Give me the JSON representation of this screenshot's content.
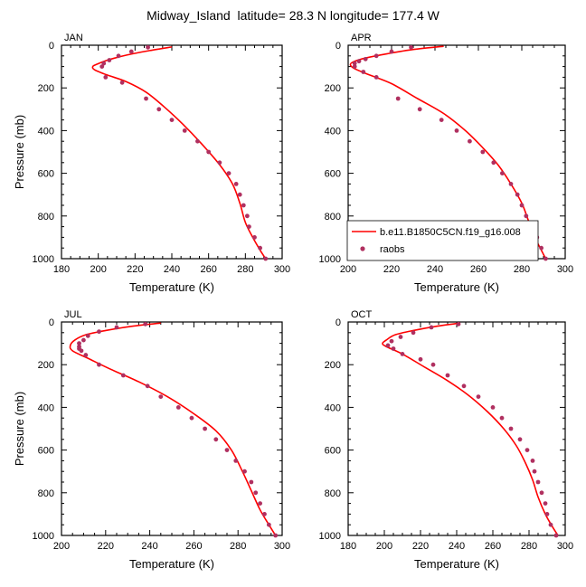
{
  "title": "Midway_Island  latitude= 28.3 N longitude= 177.4 W",
  "colors": {
    "model_line": "#ff0000",
    "obs_marker": "#b03060",
    "axis": "#000000"
  },
  "legend": {
    "items": [
      {
        "label": "b.e11.B1850C5CN.f19_g16.008",
        "kind": "line"
      },
      {
        "label": "raobs",
        "kind": "marker"
      }
    ]
  },
  "chart_data": [
    {
      "type": "line",
      "panel": "JAN",
      "xlabel": "Temperature (K)",
      "ylabel": "Pressure (mb)",
      "xlim": [
        180,
        300
      ],
      "ylim": [
        1000,
        0
      ],
      "xticks": [
        180,
        200,
        220,
        240,
        260,
        280,
        300
      ],
      "yticks": [
        0,
        200,
        400,
        600,
        800,
        1000
      ],
      "model": {
        "name": "b.e11.B1850C5CN.f19_g16.008",
        "points": [
          [
            240,
            8
          ],
          [
            228,
            25
          ],
          [
            216,
            45
          ],
          [
            205,
            70
          ],
          [
            199,
            90
          ],
          [
            197,
            100
          ],
          [
            198,
            115
          ],
          [
            205,
            140
          ],
          [
            215,
            170
          ],
          [
            226,
            220
          ],
          [
            236,
            290
          ],
          [
            246,
            370
          ],
          [
            256,
            460
          ],
          [
            266,
            560
          ],
          [
            273,
            650
          ],
          [
            277,
            740
          ],
          [
            280,
            830
          ],
          [
            284,
            900
          ],
          [
            288,
            960
          ],
          [
            291,
            1000
          ]
        ]
      },
      "raobs": {
        "name": "raobs",
        "points": [
          [
            227,
            10
          ],
          [
            218,
            30
          ],
          [
            211,
            50
          ],
          [
            206,
            70
          ],
          [
            203,
            85
          ],
          [
            202,
            100
          ],
          [
            204,
            150
          ],
          [
            213,
            175
          ],
          [
            226,
            250
          ],
          [
            233,
            300
          ],
          [
            240,
            350
          ],
          [
            247,
            400
          ],
          [
            254,
            450
          ],
          [
            260,
            500
          ],
          [
            266,
            550
          ],
          [
            271,
            600
          ],
          [
            275,
            650
          ],
          [
            277,
            700
          ],
          [
            279,
            750
          ],
          [
            281,
            800
          ],
          [
            282,
            850
          ],
          [
            285,
            900
          ],
          [
            288,
            950
          ],
          [
            291,
            1000
          ]
        ]
      }
    },
    {
      "type": "line",
      "panel": "APR",
      "xlabel": "Temperature (K)",
      "ylabel": "",
      "xlim": [
        200,
        300
      ],
      "ylim": [
        1000,
        0
      ],
      "xticks": [
        200,
        220,
        240,
        260,
        280,
        300
      ],
      "yticks": [
        0,
        200,
        400,
        600,
        800,
        1000
      ],
      "model": {
        "name": "b.e11.B1850C5CN.f19_g16.008",
        "points": [
          [
            244,
            5
          ],
          [
            230,
            20
          ],
          [
            218,
            40
          ],
          [
            208,
            60
          ],
          [
            203,
            75
          ],
          [
            201,
            90
          ],
          [
            203,
            110
          ],
          [
            210,
            140
          ],
          [
            220,
            180
          ],
          [
            232,
            250
          ],
          [
            244,
            320
          ],
          [
            254,
            400
          ],
          [
            262,
            480
          ],
          [
            269,
            560
          ],
          [
            275,
            650
          ],
          [
            280,
            740
          ],
          [
            283,
            820
          ],
          [
            286,
            900
          ],
          [
            289,
            960
          ],
          [
            291,
            1000
          ]
        ]
      },
      "raobs": {
        "name": "raobs",
        "points": [
          [
            229,
            10
          ],
          [
            220,
            30
          ],
          [
            213,
            50
          ],
          [
            208,
            65
          ],
          [
            205,
            75
          ],
          [
            203,
            85
          ],
          [
            203,
            100
          ],
          [
            207,
            125
          ],
          [
            213,
            150
          ],
          [
            223,
            250
          ],
          [
            233,
            300
          ],
          [
            243,
            350
          ],
          [
            250,
            400
          ],
          [
            256,
            450
          ],
          [
            262,
            500
          ],
          [
            267,
            550
          ],
          [
            271,
            600
          ],
          [
            275,
            650
          ],
          [
            278,
            700
          ],
          [
            280,
            750
          ],
          [
            282,
            800
          ],
          [
            284,
            850
          ],
          [
            287,
            900
          ],
          [
            289,
            950
          ],
          [
            291,
            1000
          ]
        ]
      }
    },
    {
      "type": "line",
      "panel": "JUL",
      "xlabel": "Temperature (K)",
      "ylabel": "Pressure (mb)",
      "xlim": [
        200,
        300
      ],
      "ylim": [
        1000,
        0
      ],
      "xticks": [
        200,
        220,
        240,
        260,
        280,
        300
      ],
      "yticks": [
        0,
        200,
        400,
        600,
        800,
        1000
      ],
      "model": {
        "name": "b.e11.B1850C5CN.f19_g16.008",
        "points": [
          [
            245,
            5
          ],
          [
            232,
            20
          ],
          [
            220,
            40
          ],
          [
            211,
            60
          ],
          [
            206,
            85
          ],
          [
            204,
            110
          ],
          [
            205,
            135
          ],
          [
            212,
            170
          ],
          [
            222,
            220
          ],
          [
            235,
            280
          ],
          [
            248,
            350
          ],
          [
            260,
            430
          ],
          [
            270,
            510
          ],
          [
            277,
            600
          ],
          [
            282,
            700
          ],
          [
            286,
            790
          ],
          [
            290,
            880
          ],
          [
            294,
            950
          ],
          [
            297,
            1000
          ]
        ]
      },
      "raobs": {
        "name": "raobs",
        "points": [
          [
            238,
            10
          ],
          [
            225,
            25
          ],
          [
            217,
            45
          ],
          [
            212,
            65
          ],
          [
            210,
            85
          ],
          [
            208,
            100
          ],
          [
            208,
            115
          ],
          [
            208,
            125
          ],
          [
            209,
            135
          ],
          [
            211,
            155
          ],
          [
            217,
            200
          ],
          [
            228,
            250
          ],
          [
            239,
            300
          ],
          [
            245,
            350
          ],
          [
            253,
            400
          ],
          [
            259,
            450
          ],
          [
            265,
            500
          ],
          [
            270,
            550
          ],
          [
            275,
            600
          ],
          [
            279,
            650
          ],
          [
            283,
            700
          ],
          [
            286,
            750
          ],
          [
            288,
            800
          ],
          [
            290,
            850
          ],
          [
            292,
            900
          ],
          [
            294,
            950
          ],
          [
            297,
            1000
          ]
        ]
      }
    },
    {
      "type": "line",
      "panel": "OCT",
      "xlabel": "Temperature (K)",
      "ylabel": "",
      "xlim": [
        180,
        300
      ],
      "ylim": [
        1000,
        0
      ],
      "xticks": [
        180,
        200,
        220,
        240,
        260,
        280,
        300
      ],
      "yticks": [
        0,
        200,
        400,
        600,
        800,
        1000
      ],
      "model": {
        "name": "b.e11.B1850C5CN.f19_g16.008",
        "points": [
          [
            242,
            5
          ],
          [
            229,
            20
          ],
          [
            216,
            40
          ],
          [
            206,
            60
          ],
          [
            201,
            85
          ],
          [
            199,
            100
          ],
          [
            201,
            115
          ],
          [
            210,
            150
          ],
          [
            222,
            210
          ],
          [
            234,
            270
          ],
          [
            246,
            340
          ],
          [
            257,
            420
          ],
          [
            266,
            500
          ],
          [
            273,
            580
          ],
          [
            278,
            660
          ],
          [
            282,
            740
          ],
          [
            285,
            820
          ],
          [
            289,
            900
          ],
          [
            293,
            960
          ],
          [
            296,
            1000
          ]
        ]
      },
      "raobs": {
        "name": "raobs",
        "points": [
          [
            241,
            10
          ],
          [
            226,
            25
          ],
          [
            216,
            50
          ],
          [
            209,
            70
          ],
          [
            204,
            90
          ],
          [
            202,
            110
          ],
          [
            205,
            125
          ],
          [
            210,
            150
          ],
          [
            220,
            175
          ],
          [
            227,
            200
          ],
          [
            235,
            250
          ],
          [
            244,
            300
          ],
          [
            252,
            350
          ],
          [
            260,
            400
          ],
          [
            265,
            450
          ],
          [
            270,
            500
          ],
          [
            275,
            550
          ],
          [
            279,
            600
          ],
          [
            282,
            650
          ],
          [
            283,
            700
          ],
          [
            285,
            750
          ],
          [
            287,
            800
          ],
          [
            289,
            850
          ],
          [
            290,
            900
          ],
          [
            292,
            950
          ],
          [
            295,
            1000
          ]
        ]
      }
    }
  ]
}
